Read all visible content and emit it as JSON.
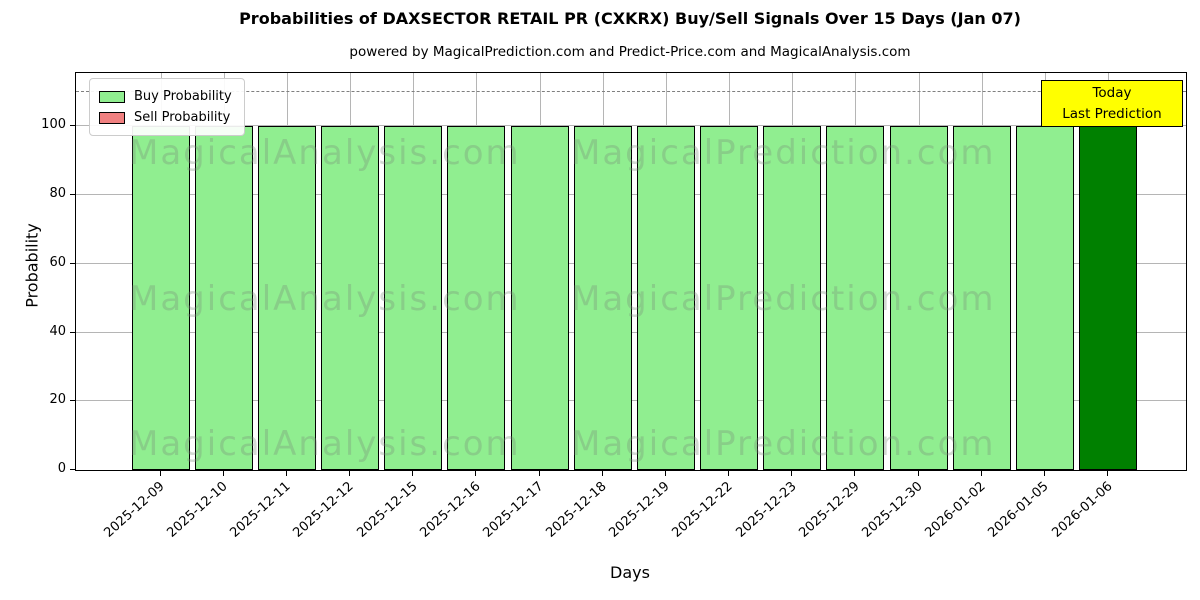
{
  "chart_data": {
    "type": "bar",
    "title": "Probabilities of DAXSECTOR RETAIL PR (CXKRX) Buy/Sell Signals Over 15 Days (Jan 07)",
    "subtitle": "powered by MagicalPrediction.com and Predict-Price.com and MagicalAnalysis.com",
    "xlabel": "Days",
    "ylabel": "Probability",
    "categories": [
      "2025-12-09",
      "2025-12-10",
      "2025-12-11",
      "2025-12-12",
      "2025-12-15",
      "2025-12-16",
      "2025-12-17",
      "2025-12-18",
      "2025-12-19",
      "2025-12-22",
      "2025-12-23",
      "2025-12-29",
      "2025-12-30",
      "2026-01-02",
      "2026-01-05",
      "2026-01-06"
    ],
    "series": [
      {
        "name": "Buy Probability",
        "color": "#90EE90",
        "values": [
          100,
          100,
          100,
          100,
          100,
          100,
          100,
          100,
          100,
          100,
          100,
          100,
          100,
          100,
          100,
          100
        ]
      },
      {
        "name": "Sell Probability",
        "color": "#F08080",
        "values": [
          0,
          0,
          0,
          0,
          0,
          0,
          0,
          0,
          0,
          0,
          0,
          0,
          0,
          0,
          0,
          0
        ]
      }
    ],
    "highlight_last_bar_color": "#008000",
    "ylim": [
      0,
      115.5
    ],
    "yticks": [
      0,
      20,
      40,
      60,
      80,
      100
    ],
    "dashed_line_y": 110,
    "dashed_line_color": "#7f7f7f",
    "grid": true,
    "legend_position": "upper left",
    "annotation": {
      "lines": [
        "Today",
        "Last Prediction"
      ],
      "bg_color": "#FFFF00"
    },
    "watermarks": [
      "MagicalAnalysis.com",
      "MagicalPrediction.com"
    ]
  }
}
